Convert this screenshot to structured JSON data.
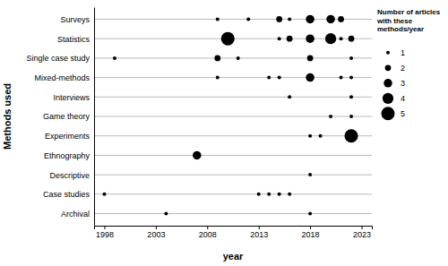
{
  "chart_data": {
    "type": "scatter",
    "xlabel": "year",
    "ylabel": "Methods used",
    "categories": [
      "Surveys",
      "Statistics",
      "Single case study",
      "Mixed-methods",
      "Interviews",
      "Game theory",
      "Experiments",
      "Ethnography",
      "Descriptive",
      "Case studies",
      "Archival"
    ],
    "x": [
      2009,
      2012,
      2015,
      2016,
      2018,
      2020,
      2021,
      2010,
      2015,
      2016,
      2018,
      2020,
      2021,
      2022,
      1999,
      2009,
      2011,
      2018,
      2022,
      2009,
      2014,
      2015,
      2018,
      2021,
      2022,
      2016,
      2022,
      2020,
      2022,
      2018,
      2019,
      2022,
      2007,
      2018,
      1998,
      2013,
      2014,
      2015,
      2016,
      2004,
      2018
    ],
    "y": [
      "Surveys",
      "Surveys",
      "Surveys",
      "Surveys",
      "Surveys",
      "Surveys",
      "Surveys",
      "Statistics",
      "Statistics",
      "Statistics",
      "Statistics",
      "Statistics",
      "Statistics",
      "Statistics",
      "Single case study",
      "Single case study",
      "Single case study",
      "Single case study",
      "Single case study",
      "Mixed-methods",
      "Mixed-methods",
      "Mixed-methods",
      "Mixed-methods",
      "Mixed-methods",
      "Mixed-methods",
      "Interviews",
      "Interviews",
      "Game theory",
      "Game theory",
      "Experiments",
      "Experiments",
      "Experiments",
      "Ethnography",
      "Descriptive",
      "Case studies",
      "Case studies",
      "Case studies",
      "Case studies",
      "Case studies",
      "Archival",
      "Archival"
    ],
    "size": [
      1,
      1,
      2,
      1,
      3,
      3,
      2,
      5,
      1,
      2,
      3,
      4,
      1,
      2,
      1,
      2,
      1,
      2,
      1,
      1,
      1,
      1,
      3,
      1,
      1,
      1,
      1,
      1,
      1,
      1,
      1,
      5,
      3,
      1,
      1,
      1,
      1,
      1,
      1,
      1,
      1
    ],
    "size_legend": {
      "title": "Number of articles with these methods/year",
      "values": [
        1,
        2,
        3,
        4,
        5
      ]
    },
    "xlim": [
      1997,
      2024
    ],
    "xticks": [
      1998,
      2003,
      2008,
      2013,
      2018,
      2023
    ],
    "grid": true,
    "color": "#000000",
    "marker": "circle"
  }
}
